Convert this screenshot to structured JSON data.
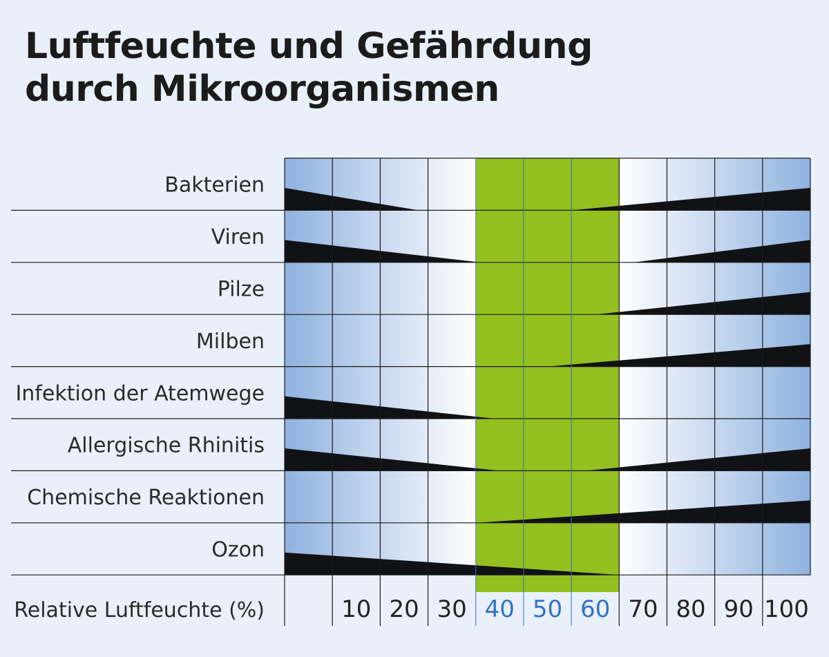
{
  "chart_data": {
    "type": "area",
    "title": [
      "Luftfeuchte und Gefährdung",
      "durch Mikroorganismen"
    ],
    "xlabel": "Relative Luftfeuchte (%)",
    "xlim": [
      0,
      110
    ],
    "x_ticks": [
      10,
      20,
      30,
      40,
      50,
      60,
      70,
      80,
      90,
      100
    ],
    "optimal_range": [
      40,
      70
    ],
    "grid": true,
    "series": [
      {
        "name": "Bakterien",
        "low_side": {
          "from": 0,
          "to": 28
        },
        "high_side": {
          "from": 60,
          "to": 110
        }
      },
      {
        "name": "Viren",
        "low_side": {
          "from": 0,
          "to": 41
        },
        "high_side": {
          "from": 73,
          "to": 110
        }
      },
      {
        "name": "Pilze",
        "low_side": null,
        "high_side": {
          "from": 65,
          "to": 110
        }
      },
      {
        "name": "Milben",
        "low_side": null,
        "high_side": {
          "from": 55,
          "to": 110
        }
      },
      {
        "name": "Infektion der Atemwege",
        "low_side": {
          "from": 0,
          "to": 44
        },
        "high_side": null
      },
      {
        "name": "Allergische Rhinitis",
        "low_side": {
          "from": 0,
          "to": 45
        },
        "high_side": {
          "from": 63,
          "to": 110
        }
      },
      {
        "name": "Chemische Reaktionen",
        "low_side": null,
        "high_side": {
          "from": 40,
          "to": 110
        }
      },
      {
        "name": "Ozon",
        "low_side": {
          "from": 0,
          "to": 70
        },
        "high_side": null
      }
    ]
  },
  "colors": {
    "optimal": "#93c01f",
    "gradient_blue": "#8fb2df",
    "gradient_white": "#ffffff",
    "risk": "#111216",
    "grid": "#1a1a1a",
    "optimal_tick_text": "#2f73c2",
    "tick_text": "#222222"
  }
}
